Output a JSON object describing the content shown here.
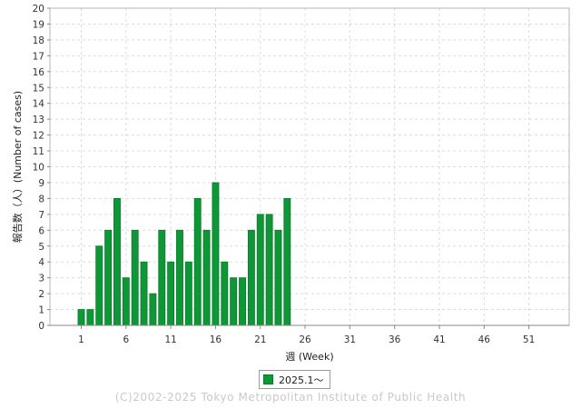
{
  "chart_data": {
    "type": "bar",
    "xlabel": "週 (Week)",
    "ylabel": "報告数（人）(Number of cases)",
    "ylim": [
      0,
      20
    ],
    "yticks": [
      0,
      1,
      2,
      3,
      4,
      5,
      6,
      7,
      8,
      9,
      10,
      11,
      12,
      13,
      14,
      15,
      16,
      17,
      18,
      19,
      20
    ],
    "xlim": [
      -2.5,
      55.5
    ],
    "xticks": [
      1,
      6,
      11,
      16,
      21,
      26,
      31,
      36,
      41,
      46,
      51
    ],
    "grid": true,
    "legend_position": "bottom-center",
    "series": [
      {
        "name": "2025.1～",
        "color": "#0e9736",
        "x": [
          1,
          2,
          3,
          4,
          5,
          6,
          7,
          8,
          9,
          10,
          11,
          12,
          13,
          14,
          15,
          16,
          17,
          18,
          19,
          20,
          21,
          22,
          23,
          24
        ],
        "values": [
          1,
          1,
          5,
          6,
          8,
          3,
          6,
          4,
          2,
          6,
          4,
          6,
          4,
          8,
          6,
          9,
          4,
          3,
          3,
          6,
          7,
          7,
          6,
          8
        ]
      }
    ]
  },
  "legend": {
    "label": "2025.1～"
  },
  "footer": {
    "copyright": "(C)2002-2025 Tokyo Metropolitan Institute of Public Health"
  }
}
